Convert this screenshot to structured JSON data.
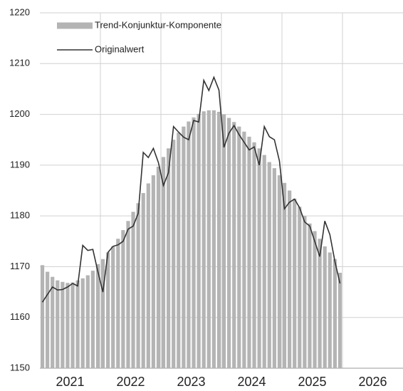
{
  "chart_data": {
    "type": "bar_line",
    "xlim": [
      2021,
      2027
    ],
    "xticks": [
      2021,
      2022,
      2023,
      2024,
      2025,
      2026
    ],
    "ylim": [
      1150,
      1220
    ],
    "yticks": [
      1150,
      1160,
      1170,
      1180,
      1190,
      1200,
      1210,
      1220
    ],
    "grid": true,
    "legend": "upper left",
    "series": [
      {
        "name": "Trend-Konjunktur-Komponente",
        "type": "bar",
        "color": "#b4b4b4",
        "values": [
          1170.3,
          1169,
          1168,
          1167.3,
          1167,
          1166.8,
          1166.9,
          1167.3,
          1167.7,
          1168.3,
          1169.2,
          1170.5,
          1171.5,
          1172.8,
          1174,
          1175.5,
          1177.2,
          1179,
          1180.8,
          1182.5,
          1184.5,
          1186.4,
          1188,
          1189.7,
          1191.6,
          1193.3,
          1195,
          1196.4,
          1197.6,
          1198.6,
          1199.4,
          1200.1,
          1200.6,
          1200.8,
          1200.8,
          1200.5,
          1200,
          1199.3,
          1198.5,
          1197.6,
          1196.6,
          1195.6,
          1194.5,
          1193.3,
          1192,
          1190.6,
          1189.4,
          1188,
          1186.5,
          1185,
          1183.4,
          1181.8,
          1180,
          1178.5,
          1177,
          1175.5,
          1174,
          1172.8,
          1171.5,
          1168.8
        ]
      },
      {
        "name": "Originalwert",
        "type": "line",
        "color": "#333333",
        "values": [
          1163,
          1164.5,
          1166,
          1165.4,
          1165.5,
          1166,
          1166.7,
          1166.2,
          1174.2,
          1173.2,
          1173.4,
          1169,
          1165,
          1172.8,
          1174,
          1174.3,
          1175,
          1177.4,
          1178,
          1180.5,
          1192.5,
          1191.5,
          1193.3,
          1190.5,
          1186,
          1188.5,
          1197.6,
          1196.5,
          1195.5,
          1195,
          1198.8,
          1198.5,
          1206.7,
          1204.7,
          1207.3,
          1204.8,
          1193.5,
          1196.3,
          1197.8,
          1196,
          1194.5,
          1193,
          1193.6,
          1190,
          1197.6,
          1195.6,
          1195,
          1190.8,
          1181.4,
          1182.7,
          1183.3,
          1181.6,
          1178.8,
          1178,
          1175,
          1172,
          1179,
          1176.3,
          1171,
          1166.7
        ]
      }
    ]
  }
}
